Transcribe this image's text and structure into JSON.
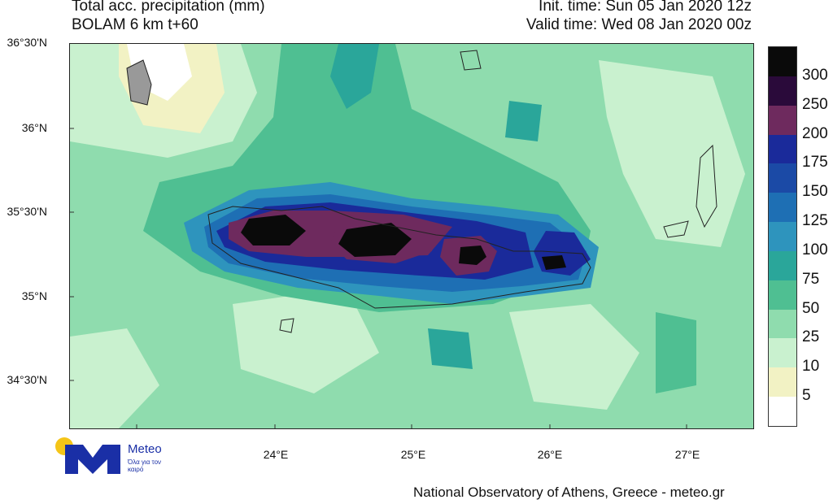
{
  "header": {
    "title": "Total acc. precipitation (mm)",
    "subtitle": "BOLAM 6 km t+60",
    "init_time": "Init. time: Sun 05 Jan 2020 12z",
    "valid_time": "Valid time: Wed 08 Jan 2020 00z"
  },
  "axes": {
    "lat_labels": [
      "36°30'N",
      "36°N",
      "35°30'N",
      "35°N",
      "34°30'N"
    ],
    "lon_labels": [
      "24°E",
      "25°E",
      "26°E",
      "27°E"
    ]
  },
  "legend": {
    "labels": [
      "300",
      "250",
      "200",
      "175",
      "150",
      "125",
      "100",
      "75",
      "50",
      "25",
      "10",
      "5"
    ],
    "colors": [
      "#0a0a0a",
      "#2a0a3a",
      "#6e2a5e",
      "#1a2a9a",
      "#1b4aa6",
      "#1e6fb4",
      "#2e94bd",
      "#2aa69a",
      "#4fbf92",
      "#8fdcae",
      "#c9f1cf",
      "#f2f2c4",
      "#ffffff"
    ]
  },
  "footer": {
    "credit": "National Observatory of Athens, Greece - meteo.gr",
    "logo_name": "Meteo",
    "logo_tagline": "Όλα για τον καιρό"
  }
}
